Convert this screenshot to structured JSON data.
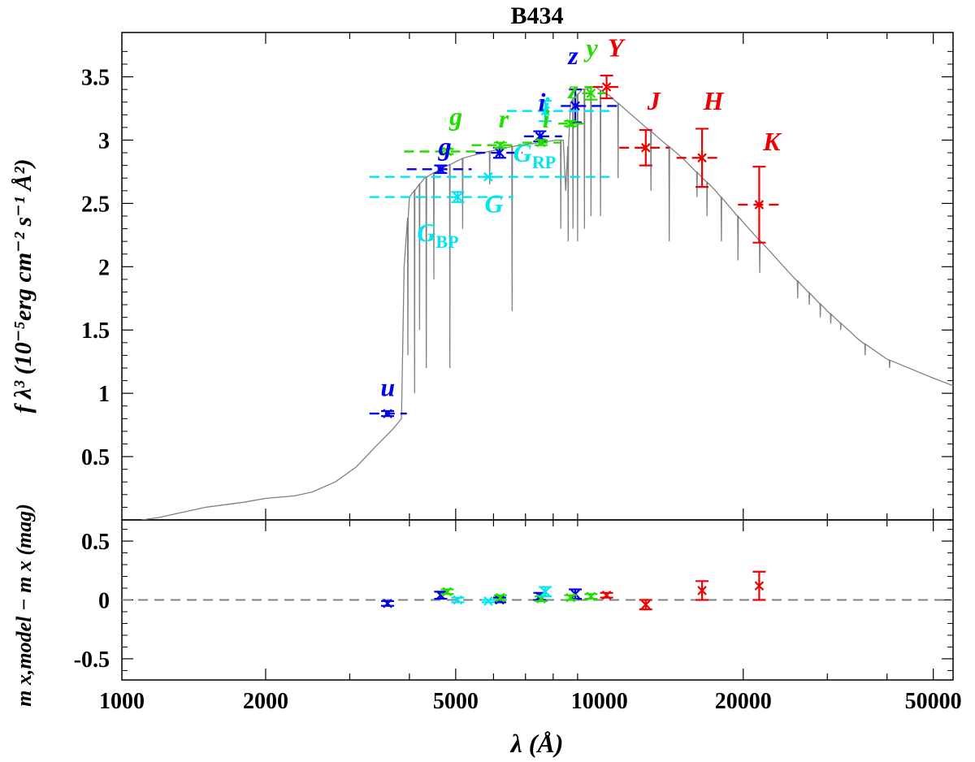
{
  "chart_data": [
    {
      "panel": "top",
      "type": "scatter",
      "title": "B434",
      "xlabel": "λ (Å)",
      "ylabel": "f λ³ (10⁻⁵erg cm⁻² s⁻¹ Å²)",
      "xscale": "log",
      "xlim": [
        1000,
        55000
      ],
      "ylim": [
        0.0,
        3.85
      ],
      "yticks": [
        "0.5",
        "1",
        "1.5",
        "2",
        "2.5",
        "3",
        "3.5"
      ],
      "model_spectrum": {
        "color": "#808080",
        "points": [
          [
            1100,
            0.0
          ],
          [
            1200,
            0.02
          ],
          [
            1300,
            0.05
          ],
          [
            1500,
            0.1
          ],
          [
            1800,
            0.14
          ],
          [
            2000,
            0.17
          ],
          [
            2300,
            0.19
          ],
          [
            2500,
            0.22
          ],
          [
            2800,
            0.3
          ],
          [
            3100,
            0.42
          ],
          [
            3400,
            0.58
          ],
          [
            3700,
            0.72
          ],
          [
            3850,
            0.8
          ],
          [
            3900,
            2.0
          ],
          [
            4000,
            2.55
          ],
          [
            4300,
            2.7
          ],
          [
            4700,
            2.78
          ],
          [
            5200,
            2.86
          ],
          [
            5700,
            2.9
          ],
          [
            6200,
            2.93
          ],
          [
            6800,
            2.96
          ],
          [
            7500,
            2.98
          ],
          [
            8100,
            3.0
          ],
          [
            8400,
            3.0
          ],
          [
            8500,
            2.6
          ],
          [
            8700,
            3.3
          ],
          [
            9200,
            3.4
          ],
          [
            9800,
            3.42
          ],
          [
            10500,
            3.35
          ],
          [
            11500,
            3.22
          ],
          [
            13000,
            3.05
          ],
          [
            15000,
            2.85
          ],
          [
            17500,
            2.6
          ],
          [
            20000,
            2.35
          ],
          [
            25000,
            1.95
          ],
          [
            30000,
            1.65
          ],
          [
            35000,
            1.42
          ],
          [
            40000,
            1.27
          ],
          [
            50000,
            1.12
          ],
          [
            55000,
            1.06
          ]
        ],
        "absorption_lines": [
          [
            3970,
            1.3
          ],
          [
            4101,
            1.0
          ],
          [
            4200,
            1.5
          ],
          [
            4340,
            1.2
          ],
          [
            4500,
            1.9
          ],
          [
            4861,
            1.2
          ],
          [
            5170,
            2.3
          ],
          [
            5890,
            2.65
          ],
          [
            6563,
            1.65
          ],
          [
            8300,
            2.3
          ],
          [
            8600,
            2.2
          ],
          [
            8800,
            2.3
          ],
          [
            9000,
            2.2
          ],
          [
            9300,
            2.3
          ],
          [
            9600,
            2.4
          ],
          [
            10050,
            2.4
          ],
          [
            10940,
            2.7
          ],
          [
            12820,
            2.6
          ],
          [
            14000,
            2.2
          ],
          [
            16000,
            2.55
          ],
          [
            16800,
            2.4
          ],
          [
            18000,
            2.2
          ],
          [
            19500,
            2.05
          ],
          [
            21660,
            1.95
          ],
          [
            26000,
            1.75
          ],
          [
            27500,
            1.7
          ],
          [
            29000,
            1.6
          ],
          [
            30500,
            1.55
          ],
          [
            32000,
            1.5
          ],
          [
            36000,
            1.3
          ],
          [
            40500,
            1.2
          ]
        ]
      },
      "series": [
        {
          "name": "blue",
          "color": "#0000ee",
          "points": [
            {
              "label": "u",
              "x": 3600,
              "y": 0.84,
              "err": 0.02,
              "xmin": 3300,
              "xmax": 3950
            },
            {
              "label": "g",
              "x": 4650,
              "y": 2.77,
              "err": 0.03,
              "xmin": 3950,
              "xmax": 5400
            },
            {
              "label": "",
              "x": 6180,
              "y": 2.9,
              "err": 0.04,
              "xmin": 5500,
              "xmax": 6900
            },
            {
              "label": "i",
              "x": 7500,
              "y": 3.03,
              "err": 0.04,
              "xmin": 6950,
              "xmax": 8350
            },
            {
              "label": "z",
              "x": 8900,
              "y": 3.27,
              "err": 0.13,
              "xmin": 8300,
              "xmax": 11000
            }
          ]
        },
        {
          "name": "green",
          "color": "#22dd00",
          "points": [
            {
              "label": "g",
              "x": 4800,
              "y": 2.91,
              "err": 0.02,
              "xmin": 3900,
              "xmax": 5500
            },
            {
              "label": "r",
              "x": 6200,
              "y": 2.96,
              "err": 0.02,
              "xmin": 5400,
              "xmax": 7000
            },
            {
              "label": "",
              "x": 7550,
              "y": 2.98,
              "err": 0.02,
              "xmin": 6900,
              "xmax": 8300
            },
            {
              "label": "z",
              "x": 8700,
              "y": 3.13,
              "err": 0.02,
              "xmin": 8200,
              "xmax": 9300
            },
            {
              "label": "y",
              "x": 9600,
              "y": 3.37,
              "err": 0.05,
              "xmin": 9200,
              "xmax": 10500
            }
          ]
        },
        {
          "name": "cyan",
          "color": "#00e5ee",
          "points": [
            {
              "label": "GBP",
              "x": 5050,
              "y": 2.55,
              "err": 0.04,
              "xmin": 3300,
              "xmax": 6600
            },
            {
              "label": "G",
              "x": 5850,
              "y": 2.71,
              "err": 0.0,
              "xmin": 3300,
              "xmax": 10500
            },
            {
              "label": "GRP",
              "x": 7700,
              "y": 3.23,
              "err": 0.08,
              "xmin": 6400,
              "xmax": 10500
            }
          ]
        },
        {
          "name": "red",
          "color": "#ee0000",
          "points": [
            {
              "label": "Y",
              "x": 10350,
              "y": 3.42,
              "err": 0.09,
              "xmin": 9700,
              "xmax": 11000
            },
            {
              "label": "J",
              "x": 12500,
              "y": 2.94,
              "err": 0.14,
              "xmin": 11000,
              "xmax": 14000
            },
            {
              "label": "H",
              "x": 16400,
              "y": 2.86,
              "err": 0.23,
              "xmin": 14500,
              "xmax": 18100
            },
            {
              "label": "K",
              "x": 21600,
              "y": 2.49,
              "err": 0.3,
              "xmin": 19500,
              "xmax": 23900
            }
          ]
        }
      ],
      "labels": [
        {
          "text": "u",
          "sub": "",
          "color": "#0000ee",
          "x": 3480,
          "y": 0.98
        },
        {
          "text": "g",
          "sub": "",
          "color": "#0000ee",
          "x": 4600,
          "y": 2.88
        },
        {
          "text": "g",
          "sub": "",
          "color": "#22dd00",
          "x": 4850,
          "y": 3.12
        },
        {
          "text": "r",
          "sub": "",
          "color": "#22dd00",
          "x": 6150,
          "y": 3.1
        },
        {
          "text": "i",
          "sub": "",
          "color": "#0000ee",
          "x": 7450,
          "y": 3.23
        },
        {
          "text": "z",
          "sub": "",
          "color": "#0000ee",
          "x": 8600,
          "y": 3.6
        },
        {
          "text": "y",
          "sub": "",
          "color": "#22dd00",
          "x": 9380,
          "y": 3.66
        },
        {
          "text": "Y",
          "sub": "",
          "color": "#ee0000",
          "x": 10400,
          "y": 3.66
        },
        {
          "text": "z",
          "sub": "",
          "color": "#22dd00",
          "x": 8600,
          "y": 3.33
        },
        {
          "text": "J",
          "sub": "",
          "color": "#ee0000",
          "x": 12600,
          "y": 3.24
        },
        {
          "text": "H",
          "sub": "",
          "color": "#ee0000",
          "x": 16500,
          "y": 3.24
        },
        {
          "text": "K",
          "sub": "",
          "color": "#ee0000",
          "x": 22000,
          "y": 2.92
        },
        {
          "text": "G",
          "sub": "RP",
          "color": "#00e5ee",
          "x": 6600,
          "y": 2.83
        },
        {
          "text": "G",
          "sub": "",
          "color": "#00e5ee",
          "x": 5750,
          "y": 2.43
        },
        {
          "text": "G",
          "sub": "BP",
          "color": "#00e5ee",
          "x": 4150,
          "y": 2.2
        },
        {
          "text": "i",
          "sub": "",
          "color": "#00e5ee",
          "x": 7600,
          "y": 3.2
        },
        {
          "text": "i",
          "sub": "",
          "color": "#22dd00",
          "x": 7600,
          "y": 3.1
        }
      ]
    },
    {
      "panel": "bottom",
      "type": "scatter",
      "xlabel": "λ (Å)",
      "ylabel": "m x,model − m x (mag)",
      "xscale": "log",
      "xlim": [
        1000,
        55000
      ],
      "ylim": [
        -0.68,
        0.68
      ],
      "xticks": [
        "1000",
        "2000",
        "5000",
        "10000",
        "20000",
        "50000"
      ],
      "yticks": [
        "-0.5",
        "0",
        "0.5"
      ],
      "zero_line": 0,
      "series": [
        {
          "name": "blue",
          "color": "#0000ee",
          "points": [
            {
              "x": 3600,
              "y": -0.03,
              "err": 0.02
            },
            {
              "x": 4650,
              "y": 0.04,
              "err": 0.03
            },
            {
              "x": 6180,
              "y": 0.0,
              "err": 0.02
            },
            {
              "x": 7500,
              "y": 0.03,
              "err": 0.03
            },
            {
              "x": 8900,
              "y": 0.05,
              "err": 0.04
            }
          ]
        },
        {
          "name": "green",
          "color": "#22dd00",
          "points": [
            {
              "x": 4800,
              "y": 0.07,
              "err": 0.02
            },
            {
              "x": 6200,
              "y": 0.02,
              "err": 0.02
            },
            {
              "x": 7550,
              "y": 0.01,
              "err": 0.02
            },
            {
              "x": 8700,
              "y": 0.02,
              "err": 0.02
            },
            {
              "x": 9600,
              "y": 0.03,
              "err": 0.02
            }
          ]
        },
        {
          "name": "cyan",
          "color": "#00e5ee",
          "points": [
            {
              "x": 5050,
              "y": 0.0,
              "err": 0.02
            },
            {
              "x": 5850,
              "y": -0.01,
              "err": 0.01
            },
            {
              "x": 7700,
              "y": 0.07,
              "err": 0.04
            }
          ]
        },
        {
          "name": "red",
          "color": "#ee0000",
          "points": [
            {
              "x": 10350,
              "y": 0.04,
              "err": 0.02
            },
            {
              "x": 12500,
              "y": -0.04,
              "err": 0.04
            },
            {
              "x": 16400,
              "y": 0.08,
              "err": 0.08
            },
            {
              "x": 21600,
              "y": 0.12,
              "err": 0.12
            }
          ]
        }
      ]
    }
  ]
}
